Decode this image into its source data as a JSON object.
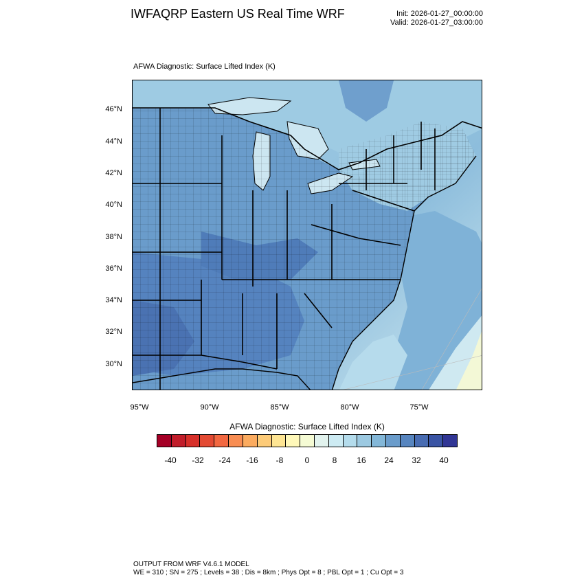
{
  "header": {
    "title": "IWFAQRP Eastern US Real Time WRF",
    "init": "Init: 2026-01-27_00:00:00",
    "valid": "Valid: 2026-01-27_03:00:00"
  },
  "map": {
    "subtitle": "AFWA Diagnostic: Surface Lifted Index   (K)",
    "lat_labels": [
      "46°N",
      "44°N",
      "42°N",
      "40°N",
      "38°N",
      "36°N",
      "34°N",
      "32°N",
      "30°N"
    ],
    "lon_labels": [
      "95°W",
      "90°W",
      "85°W",
      "80°W",
      "75°W"
    ],
    "colors": {
      "ocean_east": "#acd5e8",
      "land_mid": "#6a9ccb",
      "land_dark": "#4f7fbc",
      "warm_band": "#f6f9cf",
      "boundary": "#000000"
    }
  },
  "colorbar": {
    "title": "AFWA Diagnostic: Surface Lifted Index  (K)",
    "tick_labels": [
      "-40",
      "-32",
      "-24",
      "-16",
      "-8",
      "0",
      "8",
      "16",
      "24",
      "32",
      "40"
    ],
    "colors": [
      "#a50026",
      "#c11d2a",
      "#d7302a",
      "#e34a33",
      "#f26841",
      "#f88d52",
      "#fbab5f",
      "#fdcb78",
      "#fee593",
      "#fff8b9",
      "#f5fbd4",
      "#e2f3ee",
      "#cdebf3",
      "#b4dcec",
      "#9cc9e1",
      "#83b7d8",
      "#6a9ccb",
      "#5785bf",
      "#486cb2",
      "#3a54a4",
      "#313695"
    ]
  },
  "footer": {
    "line1": "OUTPUT FROM WRF V4.6.1 MODEL",
    "line2": "WE = 310 ; SN = 275 ; Levels = 38 ; Dis = 8km ; Phys Opt = 8 ; PBL Opt = 1 ; Cu Opt = 3"
  }
}
